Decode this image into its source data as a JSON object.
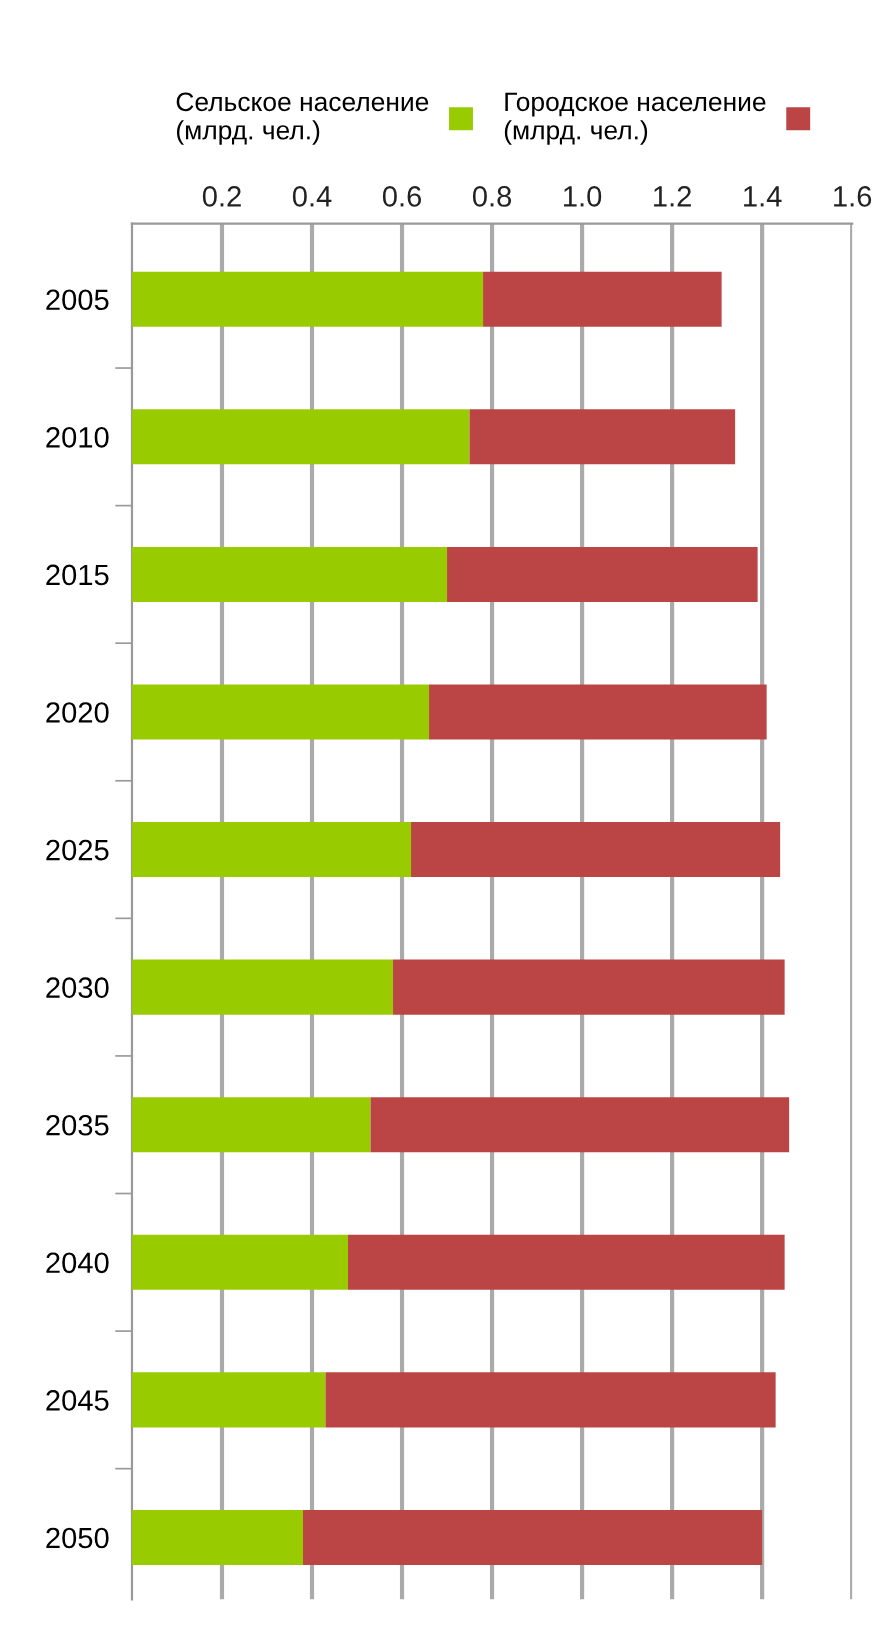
{
  "chart_data": {
    "type": "bar",
    "orientation": "horizontal",
    "stacked": true,
    "categories": [
      "2005",
      "2010",
      "2015",
      "2020",
      "2025",
      "2030",
      "2035",
      "2040",
      "2045",
      "2050"
    ],
    "series": [
      {
        "name": "Сельское население\n(млрд. чел.)",
        "color": "#99cc00",
        "values": [
          0.78,
          0.75,
          0.7,
          0.66,
          0.62,
          0.58,
          0.53,
          0.48,
          0.43,
          0.38
        ]
      },
      {
        "name": "Городское население\n(млрд. чел.)",
        "color": "#bb4444",
        "values": [
          0.53,
          0.59,
          0.69,
          0.75,
          0.82,
          0.87,
          0.93,
          0.97,
          1.0,
          1.02
        ]
      }
    ],
    "xlim": [
      0,
      1.6
    ],
    "xticks": [
      0.2,
      0.4,
      0.6,
      0.8,
      "1.0",
      1.2,
      1.4,
      1.6
    ],
    "grid": "x",
    "legend": "top"
  }
}
